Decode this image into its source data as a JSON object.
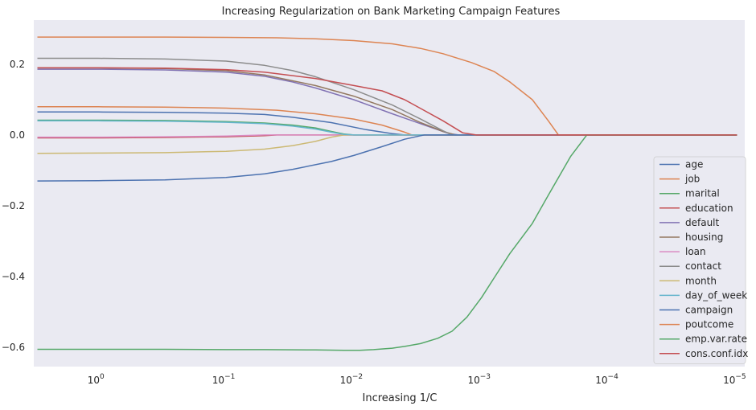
{
  "chart_data": {
    "type": "line",
    "title": "Increasing Regularization on Bank Marketing Campaign Features",
    "xlabel": "Increasing 1/C",
    "ylabel": "",
    "x_scale": "log-reversed",
    "xlim": [
      3.2,
      8.7e-06
    ],
    "ylim": [
      -0.655,
      0.325
    ],
    "x_ticks": [
      {
        "value": 1,
        "label": "10",
        "exp": "0"
      },
      {
        "value": 0.1,
        "label": "10",
        "exp": "−1"
      },
      {
        "value": 0.01,
        "label": "10",
        "exp": "−2"
      },
      {
        "value": 0.001,
        "label": "10",
        "exp": "−3"
      },
      {
        "value": 0.0001,
        "label": "10",
        "exp": "−4"
      },
      {
        "value": 1e-05,
        "label": "10",
        "exp": "−5"
      }
    ],
    "y_ticks": [
      {
        "value": 0.2,
        "label": "0.2"
      },
      {
        "value": 0.0,
        "label": "0.0"
      },
      {
        "value": -0.2,
        "label": "−0.2"
      },
      {
        "value": -0.4,
        "label": "−0.4"
      },
      {
        "value": -0.6,
        "label": "−0.6"
      }
    ],
    "grid": false,
    "background": "#eaeaf2",
    "legend_position": "lower-right",
    "series": [
      {
        "name": "age",
        "color": "#4c72b0",
        "points": [
          [
            3,
            0.065
          ],
          [
            1,
            0.065
          ],
          [
            0.3,
            0.064
          ],
          [
            0.1,
            0.062
          ],
          [
            0.05,
            0.058
          ],
          [
            0.03,
            0.05
          ],
          [
            0.015,
            0.035
          ],
          [
            0.008,
            0.015
          ],
          [
            0.005,
            0.004
          ],
          [
            0.004,
            0.0
          ],
          [
            1e-05,
            0.0
          ]
        ]
      },
      {
        "name": "job",
        "color": "#dd8452",
        "points": [
          [
            3,
            0.08
          ],
          [
            1,
            0.08
          ],
          [
            0.3,
            0.079
          ],
          [
            0.1,
            0.076
          ],
          [
            0.04,
            0.07
          ],
          [
            0.02,
            0.06
          ],
          [
            0.01,
            0.045
          ],
          [
            0.006,
            0.028
          ],
          [
            0.004,
            0.008
          ],
          [
            0.0035,
            0.0
          ],
          [
            1e-05,
            0.0
          ]
        ]
      },
      {
        "name": "marital",
        "color": "#55a868",
        "points": [
          [
            3,
            0.042
          ],
          [
            1,
            0.042
          ],
          [
            0.3,
            0.041
          ],
          [
            0.1,
            0.038
          ],
          [
            0.05,
            0.034
          ],
          [
            0.03,
            0.028
          ],
          [
            0.02,
            0.02
          ],
          [
            0.015,
            0.01
          ],
          [
            0.012,
            0.003
          ],
          [
            0.01,
            0.0
          ],
          [
            1e-05,
            0.0
          ]
        ]
      },
      {
        "name": "education",
        "color": "#c44e52",
        "points": [
          [
            3,
            -0.008
          ],
          [
            1,
            -0.008
          ],
          [
            0.3,
            -0.007
          ],
          [
            0.1,
            -0.005
          ],
          [
            0.05,
            -0.002
          ],
          [
            0.04,
            0.0
          ],
          [
            1e-05,
            0.0
          ]
        ]
      },
      {
        "name": "default",
        "color": "#8172b3",
        "points": [
          [
            3,
            0.186
          ],
          [
            1,
            0.186
          ],
          [
            0.3,
            0.184
          ],
          [
            0.1,
            0.178
          ],
          [
            0.05,
            0.166
          ],
          [
            0.03,
            0.15
          ],
          [
            0.02,
            0.133
          ],
          [
            0.01,
            0.1
          ],
          [
            0.005,
            0.06
          ],
          [
            0.0025,
            0.022
          ],
          [
            0.0018,
            0.004
          ],
          [
            0.0015,
            0.0
          ],
          [
            1e-05,
            0.0
          ]
        ]
      },
      {
        "name": "housing",
        "color": "#937860",
        "points": [
          [
            3,
            0.19
          ],
          [
            1,
            0.19
          ],
          [
            0.3,
            0.188
          ],
          [
            0.1,
            0.182
          ],
          [
            0.05,
            0.17
          ],
          [
            0.02,
            0.14
          ],
          [
            0.01,
            0.11
          ],
          [
            0.005,
            0.072
          ],
          [
            0.003,
            0.035
          ],
          [
            0.002,
            0.01
          ],
          [
            0.0016,
            0.0
          ],
          [
            1e-05,
            0.0
          ]
        ]
      },
      {
        "name": "loan",
        "color": "#da8bc3",
        "points": [
          [
            3,
            -0.006
          ],
          [
            1,
            -0.006
          ],
          [
            0.3,
            -0.005
          ],
          [
            0.1,
            -0.003
          ],
          [
            0.05,
            0.0
          ],
          [
            1e-05,
            0.0
          ]
        ]
      },
      {
        "name": "contact",
        "color": "#8c8c8c",
        "points": [
          [
            3,
            0.217
          ],
          [
            1,
            0.217
          ],
          [
            0.3,
            0.215
          ],
          [
            0.1,
            0.209
          ],
          [
            0.05,
            0.197
          ],
          [
            0.03,
            0.182
          ],
          [
            0.02,
            0.165
          ],
          [
            0.01,
            0.128
          ],
          [
            0.005,
            0.085
          ],
          [
            0.003,
            0.045
          ],
          [
            0.002,
            0.012
          ],
          [
            0.0017,
            0.0
          ],
          [
            1e-05,
            0.0
          ]
        ]
      },
      {
        "name": "month",
        "color": "#ccb974",
        "points": [
          [
            3,
            -0.052
          ],
          [
            1,
            -0.051
          ],
          [
            0.3,
            -0.05
          ],
          [
            0.1,
            -0.046
          ],
          [
            0.05,
            -0.04
          ],
          [
            0.03,
            -0.03
          ],
          [
            0.02,
            -0.018
          ],
          [
            0.015,
            -0.006
          ],
          [
            0.012,
            0.0
          ],
          [
            1e-05,
            0.0
          ]
        ]
      },
      {
        "name": "day_of_week",
        "color": "#64b5cd",
        "points": [
          [
            3,
            0.04
          ],
          [
            1,
            0.04
          ],
          [
            0.3,
            0.039
          ],
          [
            0.1,
            0.036
          ],
          [
            0.05,
            0.032
          ],
          [
            0.03,
            0.025
          ],
          [
            0.02,
            0.017
          ],
          [
            0.015,
            0.008
          ],
          [
            0.012,
            0.002
          ],
          [
            0.01,
            0.0
          ],
          [
            1e-05,
            0.0
          ]
        ]
      },
      {
        "name": "campaign",
        "color": "#4c72b0",
        "points": [
          [
            3,
            -0.13
          ],
          [
            1,
            -0.129
          ],
          [
            0.3,
            -0.127
          ],
          [
            0.1,
            -0.12
          ],
          [
            0.05,
            -0.11
          ],
          [
            0.03,
            -0.097
          ],
          [
            0.015,
            -0.075
          ],
          [
            0.01,
            -0.058
          ],
          [
            0.006,
            -0.033
          ],
          [
            0.004,
            -0.012
          ],
          [
            0.003,
            -0.002
          ],
          [
            0.0028,
            0.0
          ],
          [
            1e-05,
            0.0
          ]
        ]
      },
      {
        "name": "poutcome",
        "color": "#dd8452",
        "points": [
          [
            3,
            0.277
          ],
          [
            1,
            0.277
          ],
          [
            0.3,
            0.277
          ],
          [
            0.1,
            0.276
          ],
          [
            0.04,
            0.275
          ],
          [
            0.02,
            0.272
          ],
          [
            0.01,
            0.267
          ],
          [
            0.005,
            0.258
          ],
          [
            0.003,
            0.245
          ],
          [
            0.002,
            0.23
          ],
          [
            0.0012,
            0.205
          ],
          [
            0.0008,
            0.18
          ],
          [
            0.0006,
            0.15
          ],
          [
            0.0004,
            0.1
          ],
          [
            0.0003,
            0.04
          ],
          [
            0.00025,
            0.0
          ],
          [
            1e-05,
            0.0
          ]
        ]
      },
      {
        "name": "emp.var.rate",
        "color": "#55a868",
        "points": [
          [
            3,
            -0.606
          ],
          [
            1,
            -0.606
          ],
          [
            0.3,
            -0.606
          ],
          [
            0.1,
            -0.607
          ],
          [
            0.05,
            -0.607
          ],
          [
            0.02,
            -0.608
          ],
          [
            0.012,
            -0.609
          ],
          [
            0.009,
            -0.609
          ],
          [
            0.007,
            -0.607
          ],
          [
            0.005,
            -0.603
          ],
          [
            0.004,
            -0.598
          ],
          [
            0.003,
            -0.59
          ],
          [
            0.0022,
            -0.575
          ],
          [
            0.0017,
            -0.555
          ],
          [
            0.0013,
            -0.515
          ],
          [
            0.001,
            -0.46
          ],
          [
            0.0008,
            -0.405
          ],
          [
            0.0006,
            -0.335
          ],
          [
            0.0004,
            -0.25
          ],
          [
            0.0003,
            -0.17
          ],
          [
            0.0002,
            -0.06
          ],
          [
            0.00015,
            0.0
          ],
          [
            1e-05,
            0.0
          ]
        ]
      },
      {
        "name": "cons.conf.idx",
        "color": "#c44e52",
        "points": [
          [
            3,
            0.19
          ],
          [
            1,
            0.19
          ],
          [
            0.3,
            0.189
          ],
          [
            0.1,
            0.185
          ],
          [
            0.05,
            0.178
          ],
          [
            0.02,
            0.16
          ],
          [
            0.01,
            0.14
          ],
          [
            0.006,
            0.125
          ],
          [
            0.004,
            0.1
          ],
          [
            0.003,
            0.075
          ],
          [
            0.002,
            0.04
          ],
          [
            0.0014,
            0.006
          ],
          [
            0.0011,
            0.0
          ],
          [
            1e-05,
            0.0
          ]
        ]
      }
    ]
  }
}
